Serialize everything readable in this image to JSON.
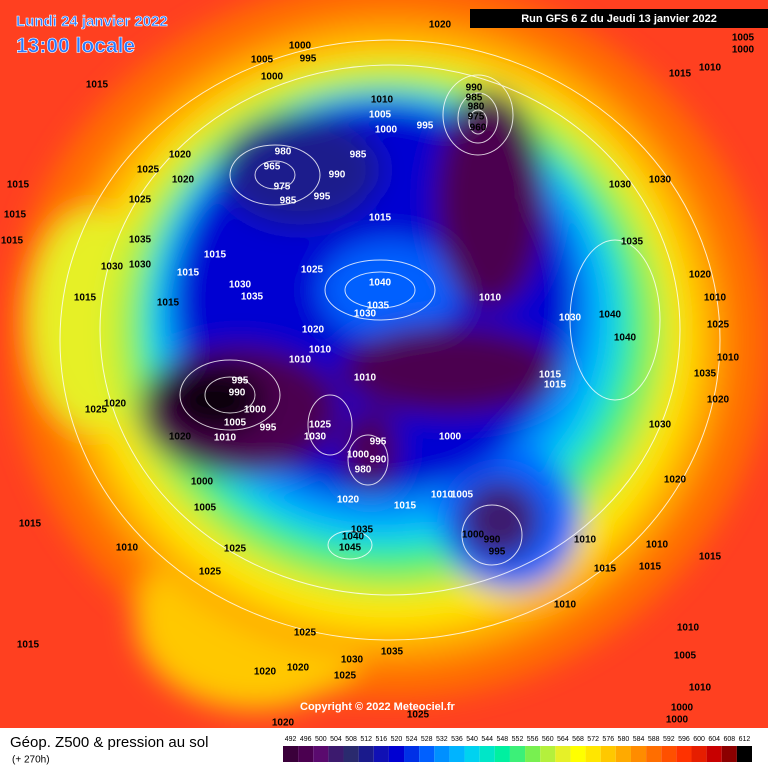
{
  "header": {
    "date": "Lundi 24 janvier 2022",
    "time": "13:00 locale",
    "run": "Run GFS 6 Z du Jeudi 13 janvier 2022"
  },
  "footer": {
    "title": "Géop. Z500 & pression au sol",
    "lead": "(+ 270h)",
    "copyright": "Copyright © 2022 Meteociel.fr"
  },
  "isobar_labels": [
    1020,
    1005,
    1000,
    1010,
    1015,
    1000,
    995,
    1005,
    1000,
    1015,
    990,
    985,
    980,
    975,
    960,
    1010,
    1005,
    1000,
    995,
    980,
    985,
    965,
    975,
    990,
    985,
    995,
    1025,
    1020,
    1020,
    1015,
    1025,
    1015,
    1015,
    1035,
    1030,
    1030,
    1015,
    1015,
    1015,
    1030,
    1030,
    1035,
    1020,
    1010,
    1025,
    1025,
    1040,
    1030,
    1035,
    1035,
    1030,
    1010,
    1030,
    1040,
    1040,
    1015,
    1015,
    1020,
    1010,
    1010,
    1010,
    1015,
    1015,
    1010,
    1035,
    995,
    990,
    1020,
    1025,
    1000,
    1005,
    1025,
    995,
    1030,
    1010,
    1020,
    995,
    1000,
    1030,
    1020,
    1000,
    980,
    990,
    1020,
    1000,
    1020,
    1010,
    1005,
    1015,
    1005,
    1015,
    1000,
    990,
    995,
    1010,
    1010,
    1015,
    1015,
    1015,
    1010,
    1025,
    1035,
    1040,
    1045,
    1025,
    1010,
    1025,
    1015,
    1030,
    1035,
    1020,
    1020,
    1025,
    1010,
    1005,
    1010,
    1000,
    1000,
    1025,
    1020
  ],
  "scale": {
    "values": [
      492,
      496,
      500,
      504,
      508,
      512,
      516,
      520,
      524,
      528,
      532,
      536,
      540,
      544,
      548,
      552,
      556,
      560,
      564,
      568,
      572,
      576,
      580,
      584,
      588,
      592,
      596,
      600,
      604,
      608,
      612
    ],
    "colors": [
      "#3a003a",
      "#4b0050",
      "#5a0a6e",
      "#3c1a6e",
      "#2a2a6e",
      "#1a1a8c",
      "#1010b4",
      "#0000d2",
      "#0030e6",
      "#0060ff",
      "#0090ff",
      "#00b4ff",
      "#00d2f0",
      "#00e6c8",
      "#00f0a0",
      "#3cf078",
      "#78f050",
      "#b4f03c",
      "#e6f028",
      "#ffff00",
      "#ffe600",
      "#ffc800",
      "#ffaa00",
      "#ff8c00",
      "#ff6e00",
      "#ff5000",
      "#ff3200",
      "#e61e00",
      "#c80000",
      "#8c0000",
      "#000000"
    ]
  }
}
